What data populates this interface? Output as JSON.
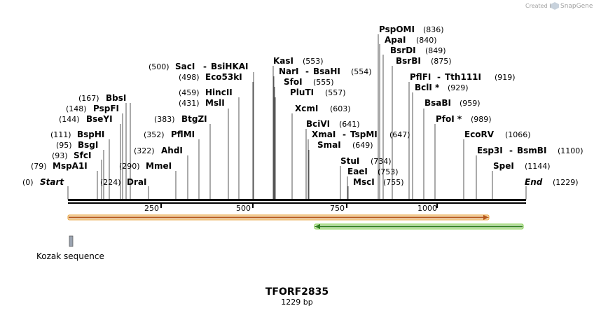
{
  "header": {
    "credit_prefix": "Created by",
    "credit_brand": "SnapGene"
  },
  "map": {
    "title": "TFORF2835",
    "length_label": "1229 bp",
    "start_label": "Start",
    "start_pos": "(0)",
    "end_label": "End",
    "end_pos": "(1229)",
    "ticks": [
      "250",
      "500",
      "750",
      "1000"
    ],
    "sites": [
      {
        "id": "pspomi",
        "name": "PspOMI",
        "pos": "(836)"
      },
      {
        "id": "apai",
        "name": "ApaI",
        "pos": "(840)"
      },
      {
        "id": "bsrdi",
        "name": "BsrDI",
        "pos": "(849)"
      },
      {
        "id": "bsrbi",
        "name": "BsrBI",
        "pos": "(875)"
      },
      {
        "id": "pflfi",
        "name": "PflFI",
        "sep": "-",
        "name2": "Tth111I",
        "pos": "(919)"
      },
      {
        "id": "bcli",
        "name": "BclI *",
        "pos": "(929)"
      },
      {
        "id": "bsabi",
        "name": "BsaBI",
        "pos": "(959)"
      },
      {
        "id": "pfoi",
        "name": "PfoI *",
        "pos": "(989)"
      },
      {
        "id": "ecorv",
        "name": "EcoRV",
        "pos": "(1066)"
      },
      {
        "id": "esp3i",
        "name": "Esp3I",
        "sep": "-",
        "name2": "BsmBI",
        "pos": "(1100)"
      },
      {
        "id": "spei",
        "name": "SpeI",
        "pos": "(1144)"
      },
      {
        "id": "kasi",
        "name": "KasI",
        "pos": "(553)"
      },
      {
        "id": "nari",
        "name": "NarI",
        "sep": "-",
        "name2": "BsaHI",
        "pos": "(554)"
      },
      {
        "id": "sfoi",
        "name": "SfoI",
        "pos": "(555)"
      },
      {
        "id": "pluti",
        "name": "PluTI",
        "pos": "(557)"
      },
      {
        "id": "xcmi",
        "name": "XcmI",
        "pos": "(603)"
      },
      {
        "id": "bcivi",
        "name": "BciVI",
        "pos": "(641)"
      },
      {
        "id": "xmai",
        "name": "XmaI",
        "sep": "-",
        "name2": "TspMI",
        "pos": "(647)"
      },
      {
        "id": "smai",
        "name": "SmaI",
        "pos": "(649)"
      },
      {
        "id": "stui",
        "name": "StuI",
        "pos": "(734)"
      },
      {
        "id": "eaei",
        "name": "EaeI",
        "pos": "(753)"
      },
      {
        "id": "msci",
        "name": "MscI",
        "pos": "(755)"
      },
      {
        "id": "saci",
        "name": "SacI",
        "sep": "-",
        "name2": "BsiHKAI",
        "pos": "(500)"
      },
      {
        "id": "eco53ki",
        "name": "Eco53kI",
        "pos": "(498)"
      },
      {
        "id": "hincii",
        "name": "HincII",
        "pos": "(459)"
      },
      {
        "id": "msli",
        "name": "MslI",
        "pos": "(431)"
      },
      {
        "id": "btgzi",
        "name": "BtgZI",
        "pos": "(383)"
      },
      {
        "id": "pflmi",
        "name": "PflMI",
        "pos": "(352)"
      },
      {
        "id": "ahdi",
        "name": "AhdI",
        "pos": "(322)"
      },
      {
        "id": "mmei",
        "name": "MmeI",
        "pos": "(290)"
      },
      {
        "id": "drai",
        "name": "DraI",
        "pos": "(224)"
      },
      {
        "id": "bbsi",
        "name": "BbsI",
        "pos": "(167)"
      },
      {
        "id": "pspfi",
        "name": "PspFI",
        "pos": "(148)"
      },
      {
        "id": "bseyi",
        "name": "BseYI",
        "pos": "(144)"
      },
      {
        "id": "bsphi",
        "name": "BspHI",
        "pos": "(111)"
      },
      {
        "id": "bsgi",
        "name": "BsgI",
        "pos": "(95)"
      },
      {
        "id": "sfci",
        "name": "SfcI",
        "pos": "(93)"
      },
      {
        "id": "mspa1i",
        "name": "MspA1I",
        "pos": "(79)"
      }
    ],
    "features": [
      {
        "id": "orf-forward",
        "color": "#e8a33d"
      },
      {
        "id": "orf-reverse",
        "color": "#7ac943"
      },
      {
        "id": "kozak",
        "label": "Kozak sequence",
        "color": "#9aa3b0"
      }
    ]
  }
}
